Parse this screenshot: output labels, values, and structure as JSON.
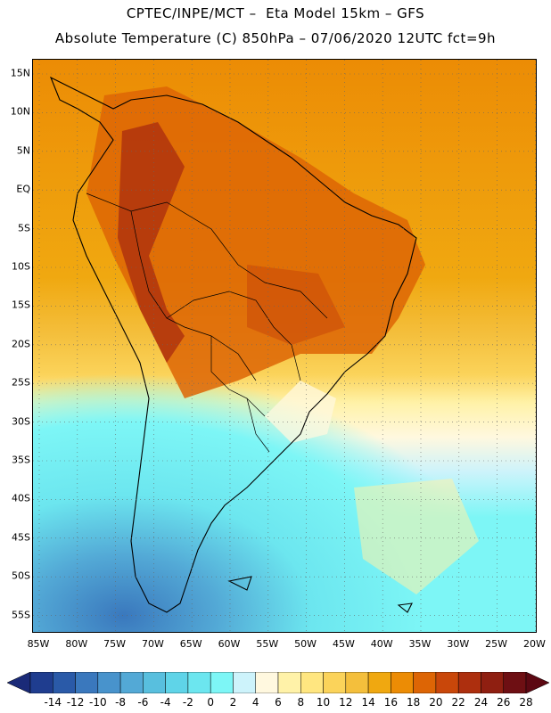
{
  "header": {
    "line1": "CPTEC/INPE/MCT –  Eta Model 15km – GFS",
    "line2": "Absolute Temperature (C) 850hPa – 07/06/2020 12UTC fct=9h"
  },
  "map": {
    "lat_labels": [
      "15N",
      "10N",
      "5N",
      "EQ",
      "5S",
      "10S",
      "15S",
      "20S",
      "25S",
      "30S",
      "35S",
      "40S",
      "45S",
      "50S",
      "55S"
    ],
    "lon_labels": [
      "85W",
      "80W",
      "75W",
      "70W",
      "65W",
      "60W",
      "55W",
      "50W",
      "45W",
      "40W",
      "35W",
      "30W",
      "25W",
      "20W"
    ]
  },
  "colorbar": {
    "labels": [
      "-14",
      "-12",
      "-10",
      "-8",
      "-6",
      "-4",
      "-2",
      "0",
      "2",
      "4",
      "6",
      "8",
      "10",
      "12",
      "14",
      "16",
      "18",
      "20",
      "22",
      "24",
      "26",
      "28"
    ],
    "colors": [
      "#1f3d8f",
      "#2a5aa8",
      "#3a78bd",
      "#4893cc",
      "#53a9d6",
      "#58bfde",
      "#5fd4e8",
      "#6ce6ef",
      "#7df6f6",
      "#cdf3fb",
      "#fff8df",
      "#fff2a8",
      "#ffe680",
      "#fbd35a",
      "#f4bf3c",
      "#f0a810",
      "#ec8c05",
      "#dd6505",
      "#c9470a",
      "#ad2f0e",
      "#8f1f11",
      "#6e0f13"
    ],
    "under_color": "#1a2a78",
    "over_color": "#5c0812"
  }
}
